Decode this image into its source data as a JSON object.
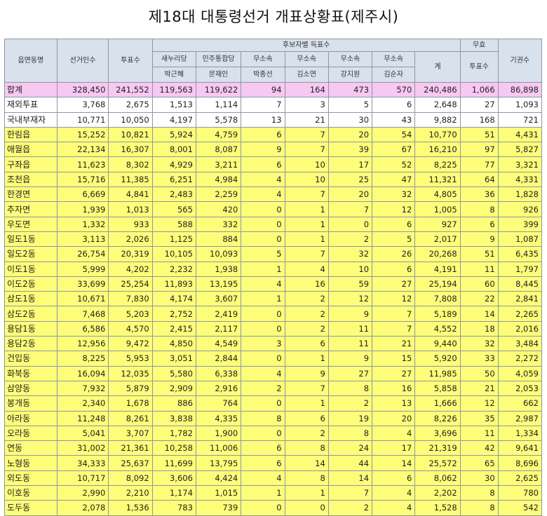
{
  "title": "제18대 대통령선거 개표상황표(제주시)",
  "header": {
    "region": "읍면동명",
    "electors": "선거인수",
    "votes": "투표수",
    "group": "후보자별 득표수",
    "invalid_top": "무효",
    "invalid_bottom": "투표수",
    "abstain": "기권수",
    "total": "계",
    "candidates": [
      {
        "party": "새누리당",
        "name": "박근혜"
      },
      {
        "party": "민주통합당",
        "name": "문재인"
      },
      {
        "party": "무소속",
        "name": "박종선"
      },
      {
        "party": "무소속",
        "name": "김소연"
      },
      {
        "party": "무소속",
        "name": "강지원"
      },
      {
        "party": "무소속",
        "name": "김순자"
      }
    ]
  },
  "rows": [
    {
      "cls": "total",
      "cells": [
        "합계",
        "328,450",
        "241,552",
        "119,563",
        "119,622",
        "94",
        "164",
        "473",
        "570",
        "240,486",
        "1,066",
        "86,898"
      ]
    },
    {
      "cls": "white",
      "cells": [
        "재외투표",
        "3,768",
        "2,675",
        "1,513",
        "1,114",
        "7",
        "3",
        "5",
        "6",
        "2,648",
        "27",
        "1,093"
      ]
    },
    {
      "cls": "white",
      "cells": [
        "국내부재자",
        "10,771",
        "10,050",
        "4,197",
        "5,578",
        "13",
        "21",
        "30",
        "43",
        "9,882",
        "168",
        "721"
      ]
    },
    {
      "cls": "yellow",
      "cells": [
        "한림읍",
        "15,252",
        "10,821",
        "5,924",
        "4,759",
        "6",
        "7",
        "20",
        "54",
        "10,770",
        "51",
        "4,431"
      ]
    },
    {
      "cls": "yellow",
      "cells": [
        "애월읍",
        "22,134",
        "16,307",
        "8,001",
        "8,087",
        "9",
        "7",
        "39",
        "67",
        "16,210",
        "97",
        "5,827"
      ]
    },
    {
      "cls": "yellow",
      "cells": [
        "구좌읍",
        "11,623",
        "8,302",
        "4,929",
        "3,211",
        "6",
        "10",
        "17",
        "52",
        "8,225",
        "77",
        "3,321"
      ]
    },
    {
      "cls": "yellow",
      "cells": [
        "조천읍",
        "15,716",
        "11,385",
        "6,251",
        "4,984",
        "4",
        "10",
        "25",
        "47",
        "11,321",
        "64",
        "4,331"
      ]
    },
    {
      "cls": "yellow",
      "cells": [
        "한경면",
        "6,669",
        "4,841",
        "2,483",
        "2,259",
        "4",
        "7",
        "20",
        "32",
        "4,805",
        "36",
        "1,828"
      ]
    },
    {
      "cls": "yellow",
      "cells": [
        "추자면",
        "1,939",
        "1,013",
        "565",
        "420",
        "0",
        "1",
        "7",
        "12",
        "1,005",
        "8",
        "926"
      ]
    },
    {
      "cls": "yellow",
      "cells": [
        "우도면",
        "1,332",
        "933",
        "588",
        "332",
        "0",
        "1",
        "0",
        "6",
        "927",
        "6",
        "399"
      ]
    },
    {
      "cls": "yellow",
      "cells": [
        "일도1동",
        "3,113",
        "2,026",
        "1,125",
        "884",
        "0",
        "1",
        "2",
        "5",
        "2,017",
        "9",
        "1,087"
      ]
    },
    {
      "cls": "yellow",
      "cells": [
        "일도2동",
        "26,754",
        "20,319",
        "10,105",
        "10,093",
        "5",
        "7",
        "32",
        "26",
        "20,268",
        "51",
        "6,435"
      ]
    },
    {
      "cls": "yellow",
      "cells": [
        "이도1동",
        "5,999",
        "4,202",
        "2,232",
        "1,938",
        "1",
        "4",
        "10",
        "6",
        "4,191",
        "11",
        "1,797"
      ]
    },
    {
      "cls": "yellow",
      "cells": [
        "이도2동",
        "33,699",
        "25,254",
        "11,893",
        "13,195",
        "4",
        "16",
        "59",
        "27",
        "25,194",
        "60",
        "8,445"
      ]
    },
    {
      "cls": "yellow",
      "cells": [
        "삼도1동",
        "10,671",
        "7,830",
        "4,174",
        "3,607",
        "1",
        "2",
        "12",
        "12",
        "7,808",
        "22",
        "2,841"
      ]
    },
    {
      "cls": "yellow",
      "cells": [
        "삼도2동",
        "7,468",
        "5,203",
        "2,752",
        "2,419",
        "0",
        "2",
        "9",
        "7",
        "5,189",
        "14",
        "2,265"
      ]
    },
    {
      "cls": "yellow",
      "cells": [
        "용담1동",
        "6,586",
        "4,570",
        "2,415",
        "2,117",
        "0",
        "2",
        "11",
        "7",
        "4,552",
        "18",
        "2,016"
      ]
    },
    {
      "cls": "yellow",
      "cells": [
        "용담2동",
        "12,956",
        "9,472",
        "4,850",
        "4,549",
        "3",
        "6",
        "11",
        "21",
        "9,440",
        "32",
        "3,484"
      ]
    },
    {
      "cls": "yellow",
      "cells": [
        "건입동",
        "8,225",
        "5,953",
        "3,051",
        "2,844",
        "0",
        "1",
        "9",
        "15",
        "5,920",
        "33",
        "2,272"
      ]
    },
    {
      "cls": "yellow",
      "cells": [
        "화북동",
        "16,094",
        "12,035",
        "5,580",
        "6,338",
        "4",
        "9",
        "27",
        "27",
        "11,985",
        "50",
        "4,059"
      ]
    },
    {
      "cls": "yellow",
      "cells": [
        "삼양동",
        "7,932",
        "5,879",
        "2,909",
        "2,916",
        "2",
        "7",
        "8",
        "16",
        "5,858",
        "21",
        "2,053"
      ]
    },
    {
      "cls": "yellow",
      "cells": [
        "봉개동",
        "2,340",
        "1,678",
        "886",
        "764",
        "0",
        "1",
        "2",
        "13",
        "1,666",
        "12",
        "662"
      ]
    },
    {
      "cls": "yellow",
      "cells": [
        "아라동",
        "11,248",
        "8,261",
        "3,838",
        "4,335",
        "8",
        "6",
        "19",
        "20",
        "8,226",
        "35",
        "2,987"
      ]
    },
    {
      "cls": "yellow",
      "cells": [
        "오라동",
        "5,041",
        "3,707",
        "1,782",
        "1,900",
        "0",
        "2",
        "8",
        "4",
        "3,696",
        "11",
        "1,334"
      ]
    },
    {
      "cls": "yellow",
      "cells": [
        "연동",
        "31,002",
        "21,361",
        "10,258",
        "11,006",
        "6",
        "8",
        "24",
        "17",
        "21,319",
        "42",
        "9,641"
      ]
    },
    {
      "cls": "yellow",
      "cells": [
        "노형동",
        "34,333",
        "25,637",
        "11,699",
        "13,795",
        "6",
        "14",
        "44",
        "14",
        "25,572",
        "65",
        "8,696"
      ]
    },
    {
      "cls": "yellow",
      "cells": [
        "외도동",
        "10,717",
        "8,092",
        "3,606",
        "4,424",
        "4",
        "8",
        "14",
        "6",
        "8,062",
        "30",
        "2,625"
      ]
    },
    {
      "cls": "yellow",
      "cells": [
        "이호동",
        "2,990",
        "2,210",
        "1,174",
        "1,015",
        "1",
        "1",
        "7",
        "4",
        "2,202",
        "8",
        "780"
      ]
    },
    {
      "cls": "yellow",
      "cells": [
        "도두동",
        "2,078",
        "1,536",
        "783",
        "739",
        "0",
        "0",
        "2",
        "4",
        "1,528",
        "8",
        "542"
      ]
    }
  ]
}
